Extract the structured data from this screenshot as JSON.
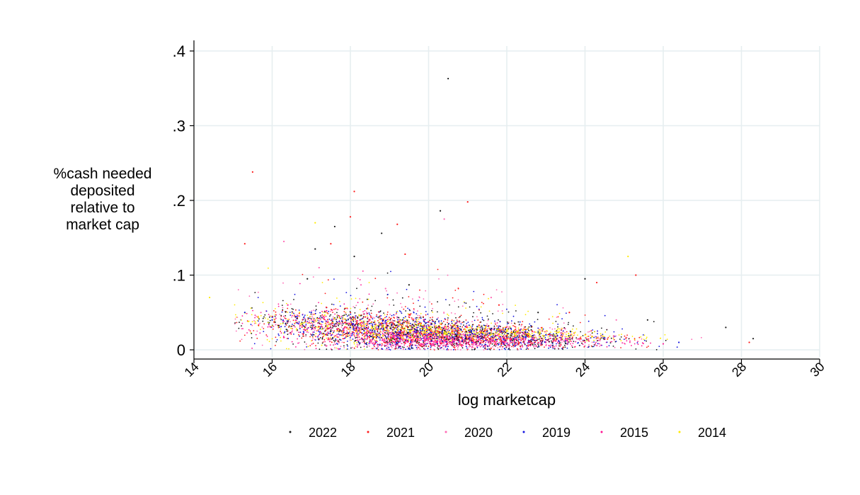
{
  "chart_data": {
    "type": "scatter",
    "title": "",
    "xlabel": "log marketcap",
    "ylabel_lines": [
      "%cash needed",
      "deposited",
      "relative to",
      "market cap"
    ],
    "xlim": [
      14,
      30
    ],
    "ylim": [
      0,
      0.4
    ],
    "x_ticks": [
      14,
      16,
      18,
      20,
      22,
      24,
      26,
      28,
      30
    ],
    "x_tick_labels": [
      "14",
      "16",
      "18",
      "20",
      "22",
      "24",
      "26",
      "28",
      "30"
    ],
    "y_ticks": [
      0,
      0.1,
      0.2,
      0.3,
      0.4
    ],
    "y_tick_labels": [
      "0",
      ".1",
      ".2",
      ".3",
      ".4"
    ],
    "grid": true,
    "legend_position": "bottom",
    "series": [
      {
        "name": "2022",
        "color": "#1a1a1a",
        "points": [
          [
            20.5,
            0.363
          ],
          [
            20.3,
            0.186
          ],
          [
            18.8,
            0.156
          ],
          [
            17.6,
            0.165
          ],
          [
            17.1,
            0.135
          ],
          [
            18.1,
            0.125
          ],
          [
            24.0,
            0.095
          ],
          [
            27.6,
            0.03
          ],
          [
            28.3,
            0.015
          ],
          [
            16.9,
            0.095
          ],
          [
            19.5,
            0.087
          ],
          [
            22.8,
            0.05
          ],
          [
            25.6,
            0.04
          ]
        ]
      },
      {
        "name": "2021",
        "color": "#ff1a1a",
        "points": [
          [
            15.5,
            0.238
          ],
          [
            18.1,
            0.212
          ],
          [
            21.0,
            0.198
          ],
          [
            18.0,
            0.178
          ],
          [
            19.2,
            0.168
          ],
          [
            15.3,
            0.142
          ],
          [
            17.5,
            0.142
          ],
          [
            19.4,
            0.128
          ],
          [
            25.3,
            0.1
          ],
          [
            24.3,
            0.09
          ],
          [
            28.2,
            0.01
          ],
          [
            21.8,
            0.06
          ],
          [
            23.6,
            0.05
          ]
        ]
      },
      {
        "name": "2020",
        "color": "#ff69b4",
        "points": [
          [
            20.4,
            0.175
          ],
          [
            16.3,
            0.145
          ],
          [
            17.2,
            0.11
          ],
          [
            18.9,
            0.082
          ],
          [
            21.6,
            0.07
          ],
          [
            24.8,
            0.04
          ]
        ]
      },
      {
        "name": "2019",
        "color": "#1414e0",
        "points": [
          [
            15.3,
            0.05
          ],
          [
            16.0,
            0.04
          ],
          [
            17.0,
            0.05
          ],
          [
            18.0,
            0.03
          ],
          [
            23.0,
            0.02
          ],
          [
            26.4,
            0.01
          ]
        ]
      },
      {
        "name": "2015",
        "color": "#ff1493",
        "points": [
          [
            16.4,
            0.06
          ],
          [
            18.5,
            0.04
          ],
          [
            20.0,
            0.02
          ],
          [
            22.0,
            0.015
          ],
          [
            24.0,
            0.01
          ],
          [
            26.0,
            0.008
          ]
        ]
      },
      {
        "name": "2014",
        "color": "#ffeb00",
        "points": [
          [
            14.4,
            0.07
          ],
          [
            17.1,
            0.17
          ],
          [
            25.1,
            0.125
          ],
          [
            20.0,
            0.03
          ],
          [
            22.0,
            0.025
          ],
          [
            24.0,
            0.02
          ]
        ]
      }
    ],
    "cloud": {
      "x_range": [
        15.0,
        27.2
      ],
      "peak_x": 20.0,
      "center_y_at_peak": 0.022,
      "center_y_at_edge": 0.008
    }
  }
}
